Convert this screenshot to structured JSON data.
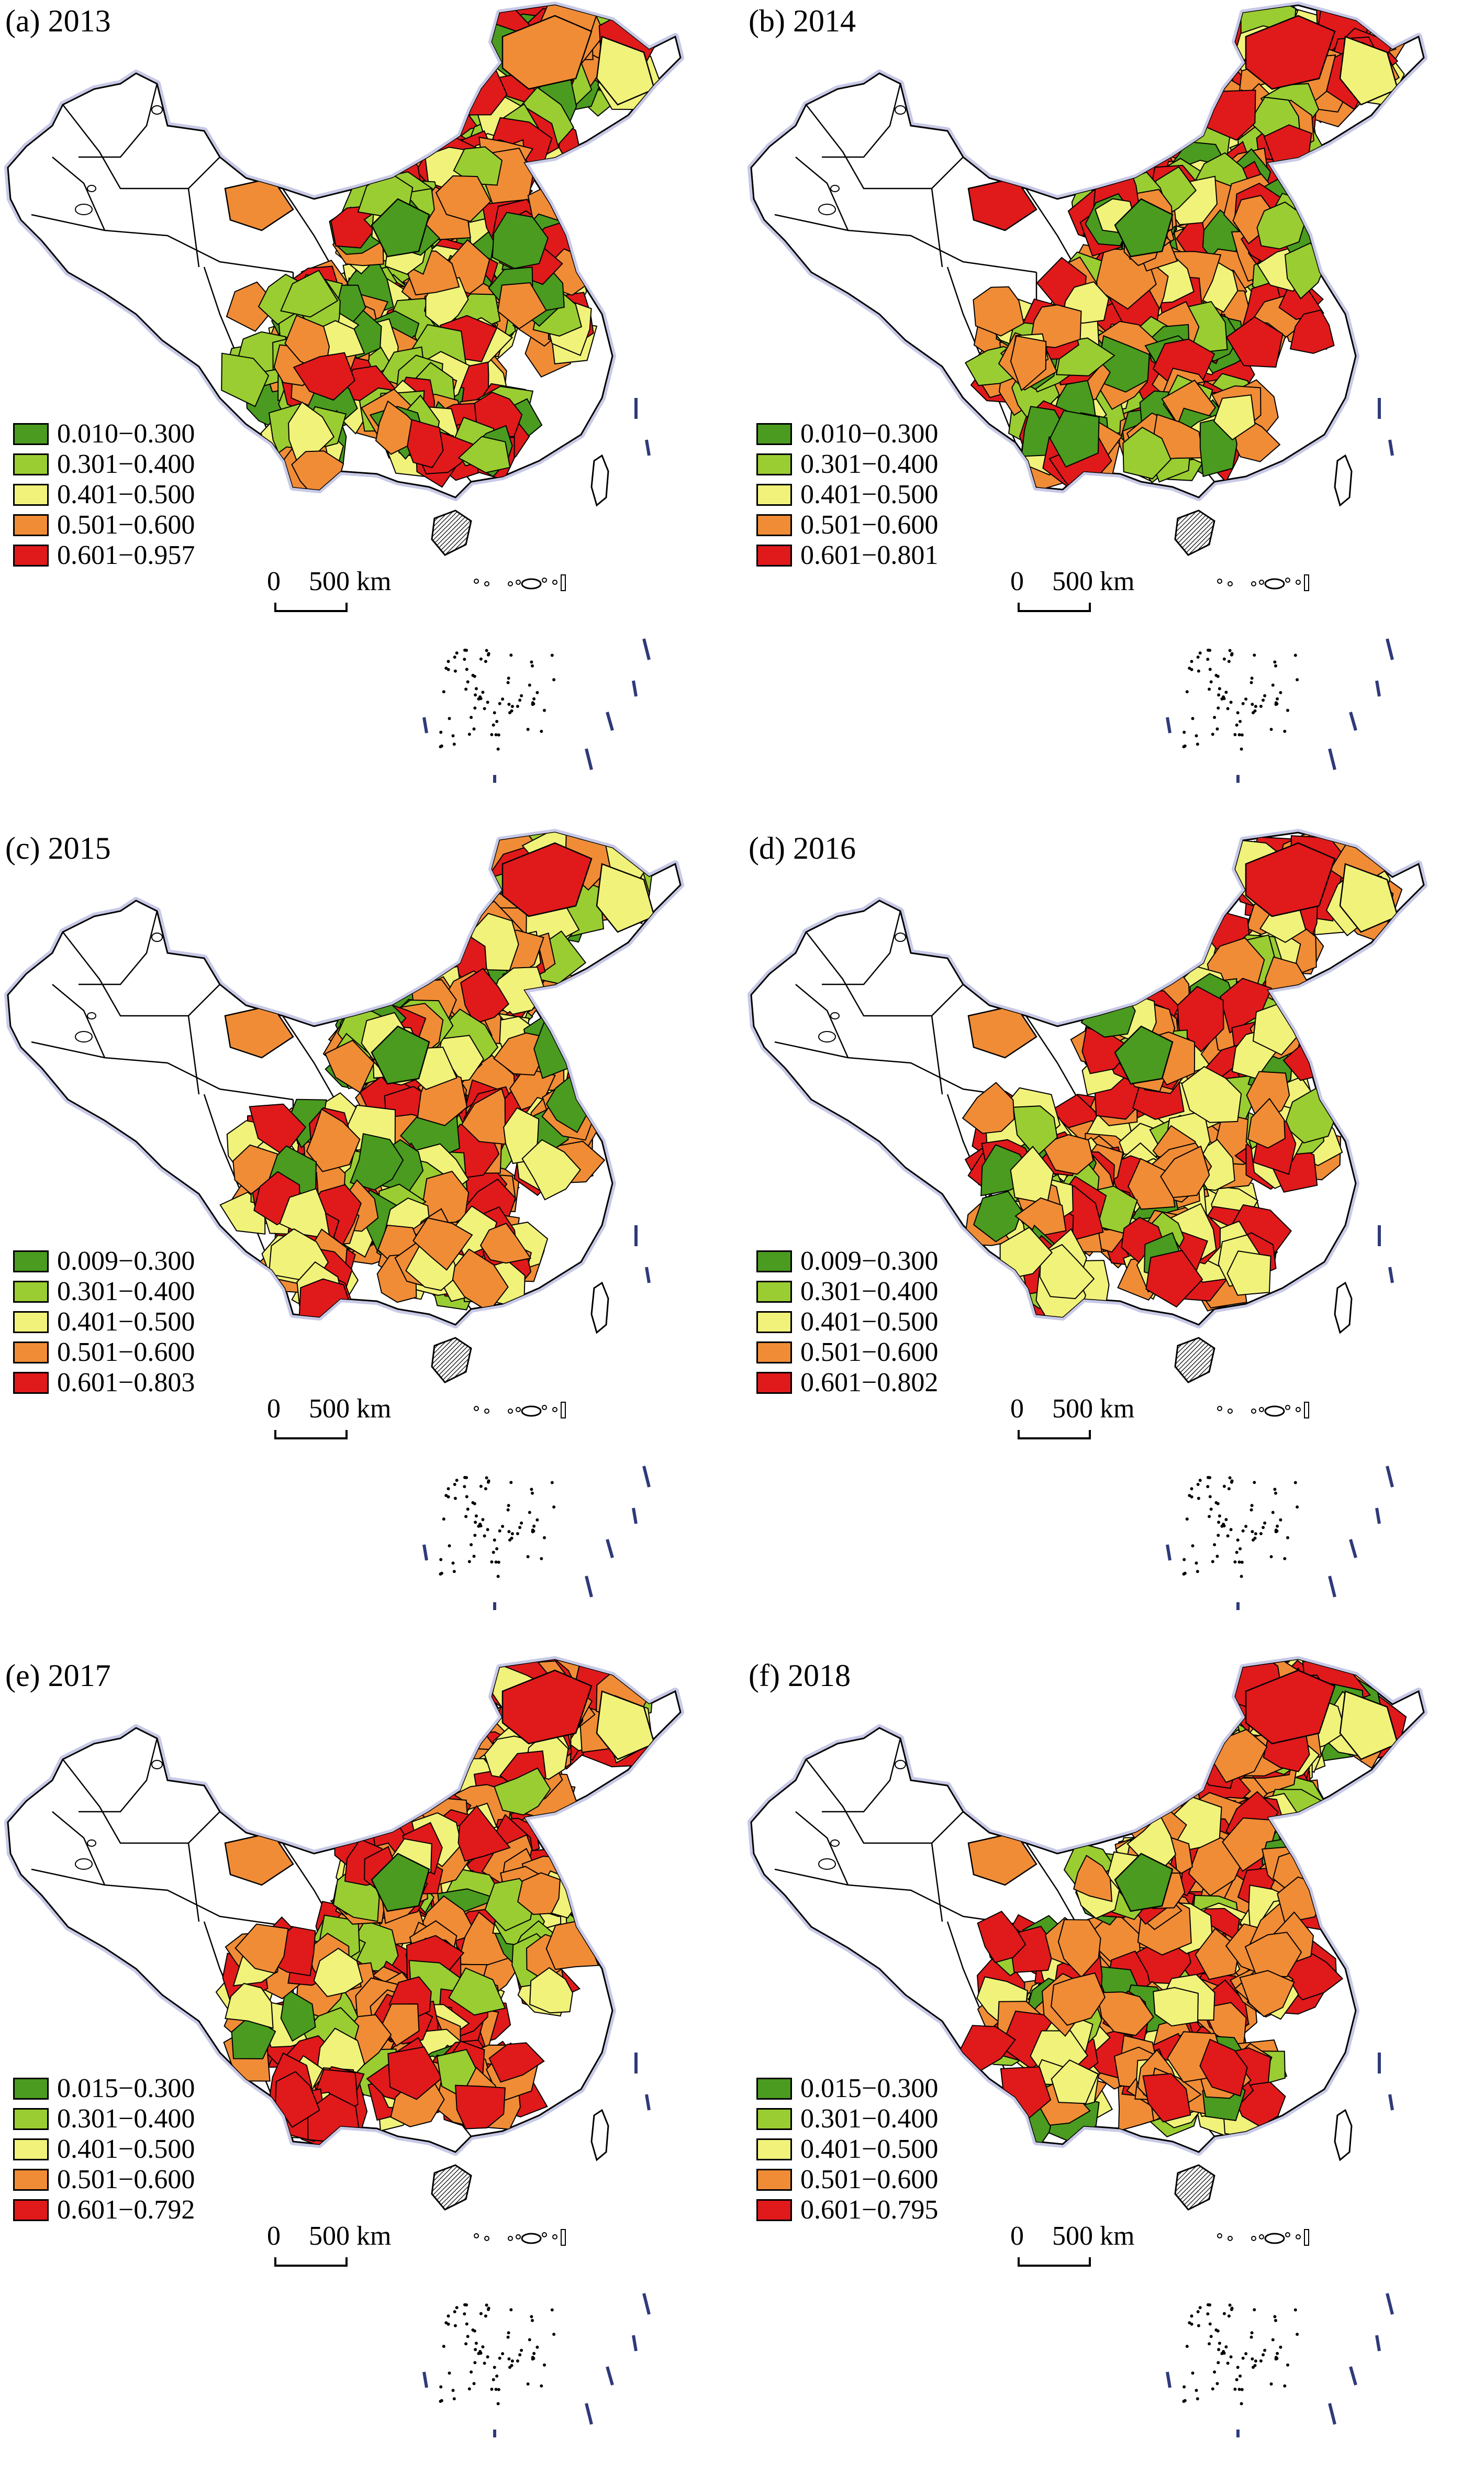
{
  "colors": {
    "c1": "#4a9b1f",
    "c2": "#9acd32",
    "c3": "#f1f27a",
    "c4": "#f08c36",
    "c5": "#e0191b",
    "blank": "#ffffff",
    "outline": "#000000"
  },
  "scale_bar": {
    "zero": "0",
    "value": "500 km"
  },
  "panels": [
    {
      "title": "(a) 2013",
      "legend": [
        "0.010−0.300",
        "0.301−0.400",
        "0.401−0.500",
        "0.501−0.600",
        "0.601−0.957"
      ]
    },
    {
      "title": "(b) 2014",
      "legend": [
        "0.010−0.300",
        "0.301−0.400",
        "0.401−0.500",
        "0.501−0.600",
        "0.601−0.801"
      ]
    },
    {
      "title": "(c) 2015",
      "legend": [
        "0.009−0.300",
        "0.301−0.400",
        "0.401−0.500",
        "0.501−0.600",
        "0.601−0.803"
      ]
    },
    {
      "title": "(d) 2016",
      "legend": [
        "0.009−0.300",
        "0.301−0.400",
        "0.401−0.500",
        "0.501−0.600",
        "0.601−0.802"
      ]
    },
    {
      "title": "(e) 2017",
      "legend": [
        "0.015−0.300",
        "0.301−0.400",
        "0.401−0.500",
        "0.501−0.600",
        "0.601−0.792"
      ]
    },
    {
      "title": "(f) 2018",
      "legend": [
        "0.015−0.300",
        "0.301−0.400",
        "0.401−0.500",
        "0.501−0.600",
        "0.601−0.795"
      ]
    }
  ]
}
